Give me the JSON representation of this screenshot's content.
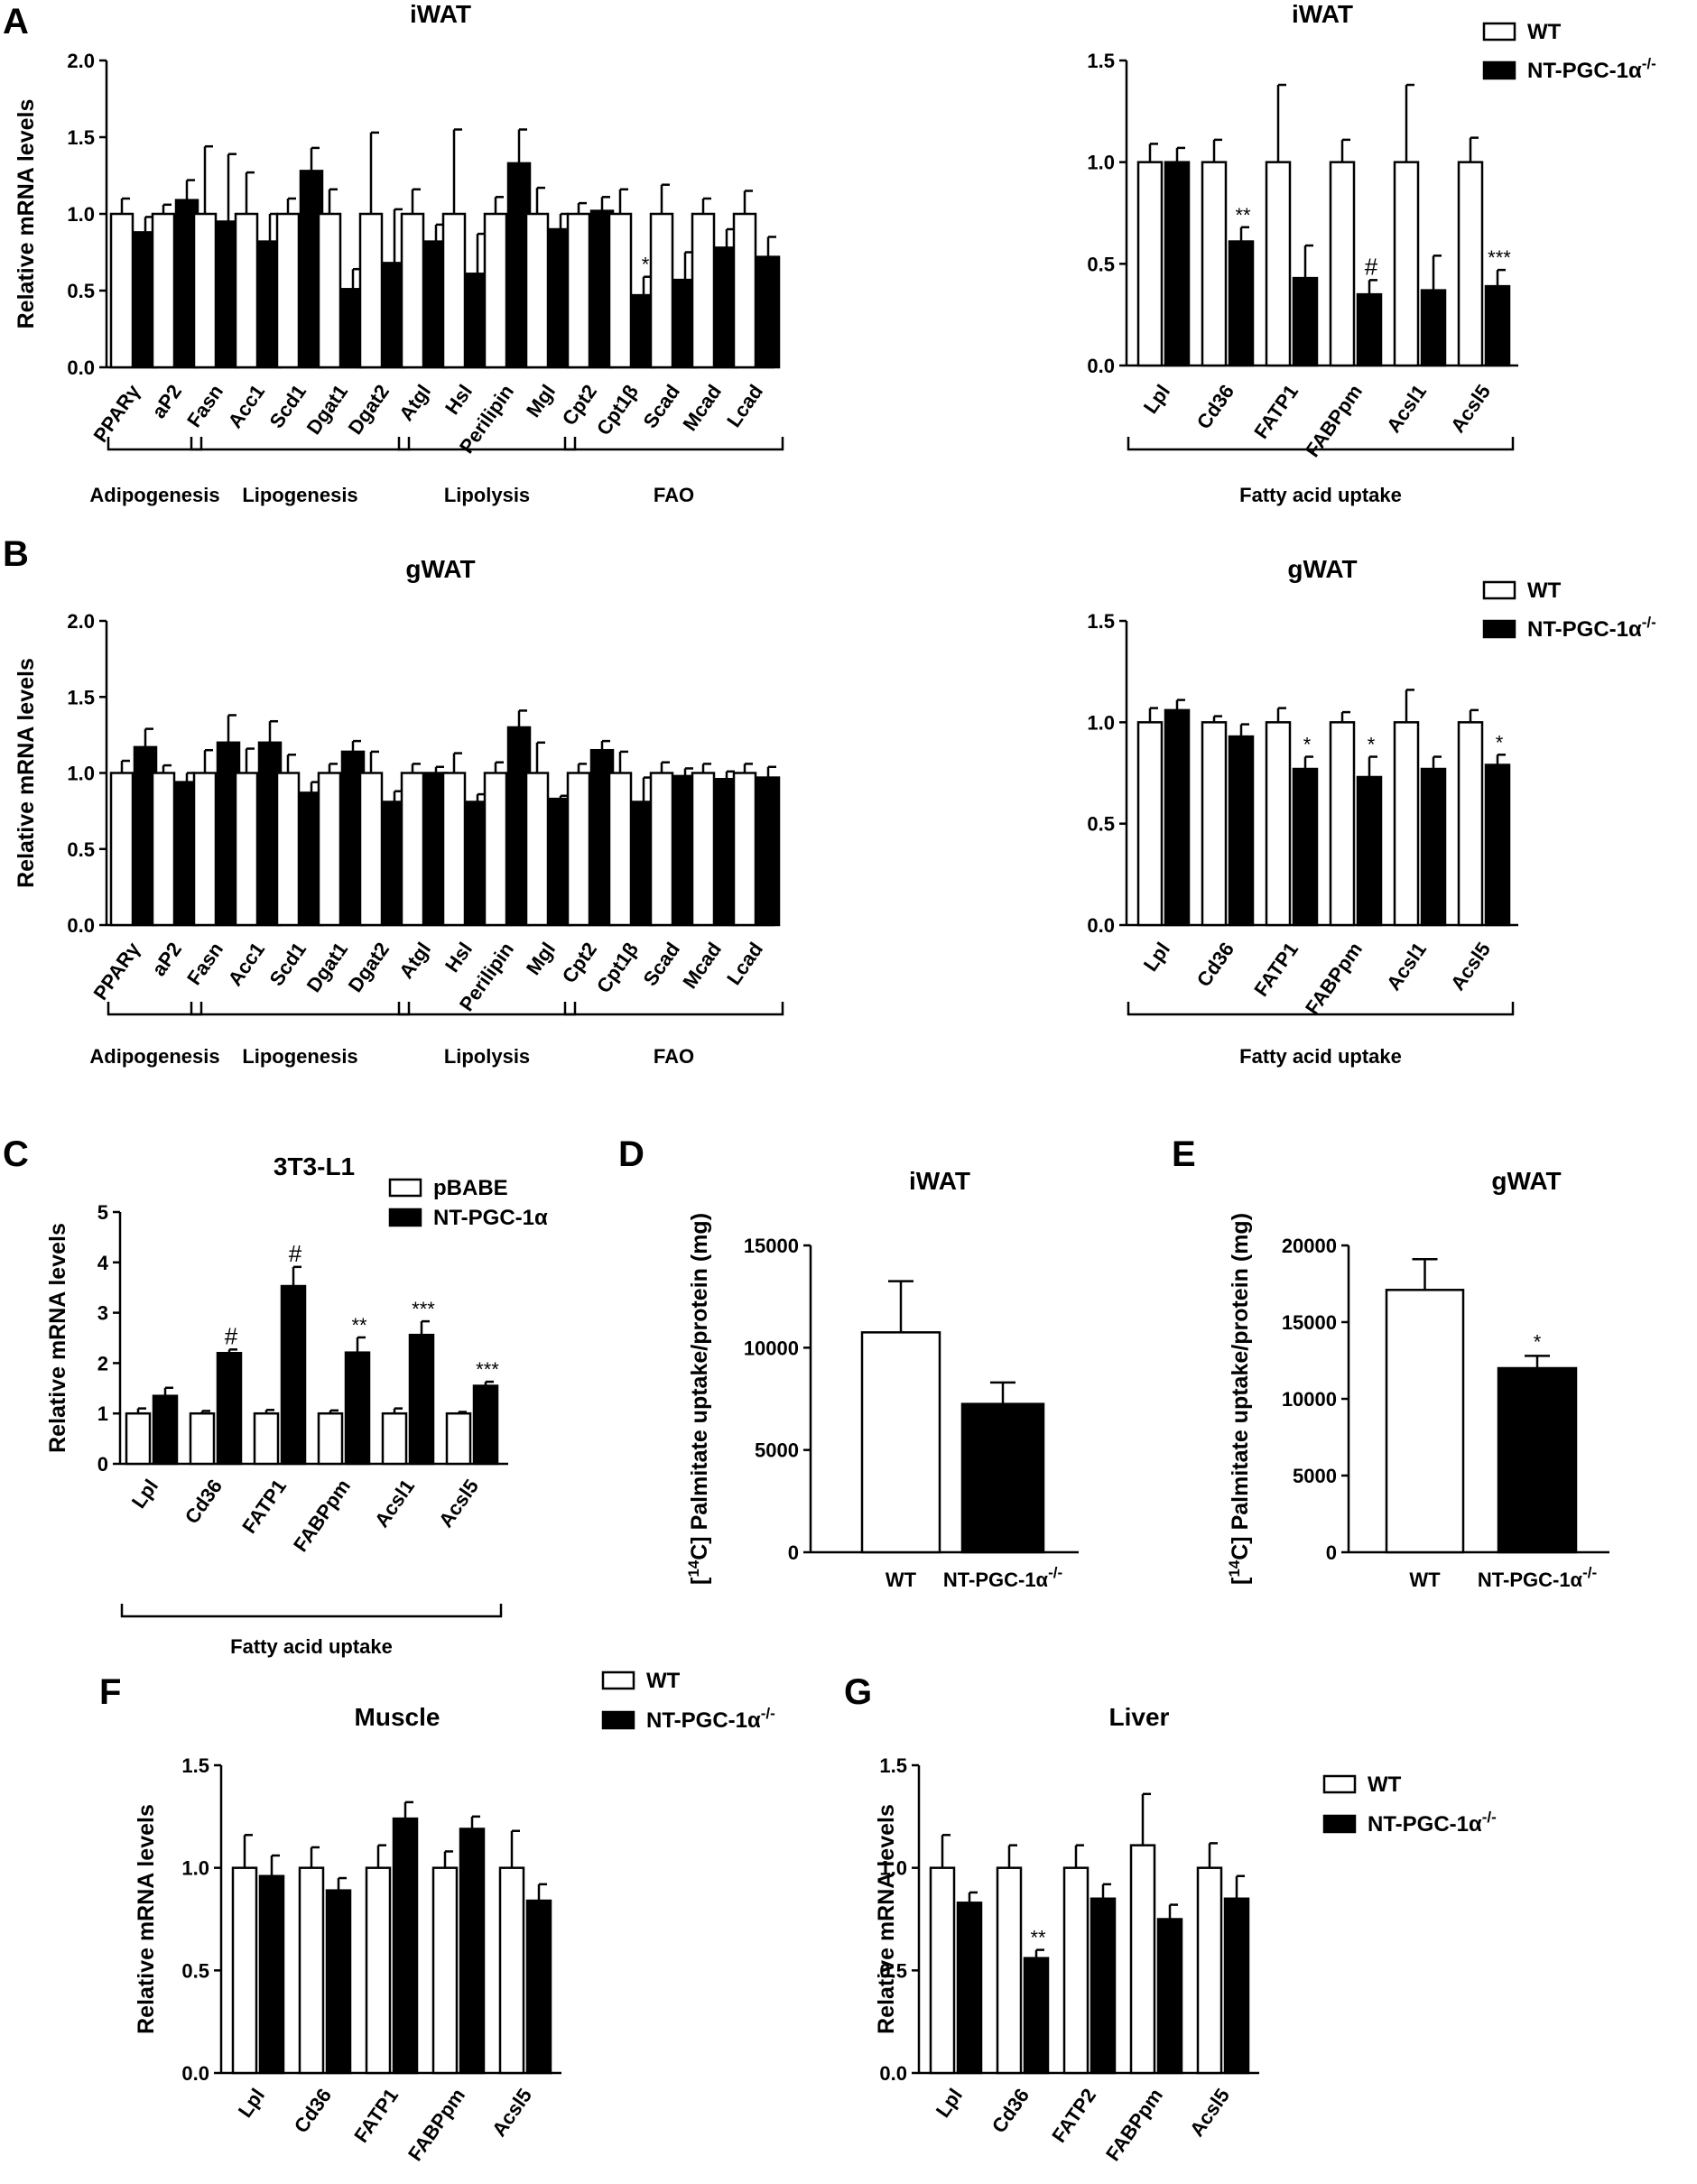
{
  "chart_data": [
    {
      "id": "A-left",
      "panel_label": "A",
      "type": "bar",
      "title": "iWAT",
      "ylabel": "Relative mRNA levels",
      "ylim": [
        0,
        2.0
      ],
      "yticks": [
        0.0,
        0.5,
        1.0,
        1.5,
        2.0
      ],
      "ytick_decimals": 1,
      "categories": [
        "PPARγ",
        "aP2",
        "Fasn",
        "Acc1",
        "Scd1",
        "Dgat1",
        "Dgat2",
        "Atgl",
        "Hsl",
        "Perilipin",
        "Mgl",
        "Cpt2",
        "Cpt1β",
        "Scad",
        "Mcad",
        "Lcad"
      ],
      "series": [
        {
          "name": "WT",
          "values": [
            1.0,
            1.0,
            1.0,
            1.0,
            1.0,
            1.0,
            1.0,
            1.0,
            1.0,
            1.0,
            1.0,
            1.0,
            1.0,
            1.0,
            1.0,
            1.0
          ],
          "errors": [
            0.1,
            0.06,
            0.44,
            0.27,
            0.1,
            0.16,
            0.53,
            0.16,
            0.55,
            0.11,
            0.17,
            0.07,
            0.16,
            0.19,
            0.1,
            0.15
          ]
        },
        {
          "name": "NT-PGC-1α-/-",
          "values": [
            0.88,
            1.09,
            0.95,
            0.82,
            1.28,
            0.51,
            0.68,
            0.82,
            0.61,
            1.33,
            0.9,
            1.02,
            0.47,
            0.57,
            0.78,
            0.72
          ],
          "errors": [
            0.1,
            0.13,
            0.44,
            0.18,
            0.15,
            0.13,
            0.35,
            0.11,
            0.26,
            0.22,
            0.1,
            0.09,
            0.12,
            0.18,
            0.12,
            0.13
          ]
        }
      ],
      "annotations": [
        {
          "category": 12,
          "text": "*"
        }
      ],
      "groups": [
        {
          "label": "Adipogenesis",
          "start": 0,
          "end": 1
        },
        {
          "label": "Lipogenesis",
          "start": 2,
          "end": 6
        },
        {
          "label": "Lipolysis",
          "start": 7,
          "end": 10
        },
        {
          "label": "FAO",
          "start": 11,
          "end": 15
        }
      ]
    },
    {
      "id": "A-right",
      "type": "bar",
      "title": "iWAT",
      "ylabel": "",
      "ylim": [
        0,
        1.5
      ],
      "yticks": [
        0.0,
        0.5,
        1.0,
        1.5
      ],
      "ytick_decimals": 1,
      "categories": [
        "Lpl",
        "Cd36",
        "FATP1",
        "FABPpm",
        "Acsl1",
        "Acsl5"
      ],
      "series": [
        {
          "name": "WT",
          "values": [
            1.0,
            1.0,
            1.0,
            1.0,
            1.0,
            1.0
          ],
          "errors": [
            0.09,
            0.11,
            0.38,
            0.11,
            0.38,
            0.12
          ]
        },
        {
          "name": "NT-PGC-1α-/-",
          "values": [
            1.0,
            0.61,
            0.43,
            0.35,
            0.37,
            0.39
          ],
          "errors": [
            0.07,
            0.07,
            0.16,
            0.07,
            0.17,
            0.08
          ]
        }
      ],
      "annotations": [
        {
          "category": 1,
          "text": "**"
        },
        {
          "category": 3,
          "text": "#"
        },
        {
          "category": 5,
          "text": "***"
        }
      ],
      "groups": [
        {
          "label": "Fatty acid uptake",
          "start": 0,
          "end": 5
        }
      ],
      "legend": [
        "WT",
        "NT-PGC-1α-/-"
      ]
    },
    {
      "id": "B-left",
      "panel_label": "B",
      "type": "bar",
      "title": "gWAT",
      "ylabel": "Relative mRNA levels",
      "ylim": [
        0,
        2.0
      ],
      "yticks": [
        0.0,
        0.5,
        1.0,
        1.5,
        2.0
      ],
      "ytick_decimals": 1,
      "categories": [
        "PPARγ",
        "aP2",
        "Fasn",
        "Acc1",
        "Scd1",
        "Dgat1",
        "Dgat2",
        "Atgl",
        "Hsl",
        "Perilipin",
        "Mgl",
        "Cpt2",
        "Cpt1β",
        "Scad",
        "Mcad",
        "Lcad"
      ],
      "series": [
        {
          "name": "WT",
          "values": [
            1.0,
            1.0,
            1.0,
            1.0,
            1.0,
            1.0,
            1.0,
            1.0,
            1.0,
            1.0,
            1.0,
            1.0,
            1.0,
            1.0,
            1.0,
            1.0
          ],
          "errors": [
            0.08,
            0.05,
            0.15,
            0.16,
            0.12,
            0.06,
            0.14,
            0.06,
            0.13,
            0.07,
            0.2,
            0.06,
            0.14,
            0.07,
            0.06,
            0.06
          ]
        },
        {
          "name": "NT-PGC-1α-/-",
          "values": [
            1.17,
            0.94,
            1.2,
            1.2,
            0.87,
            1.14,
            0.81,
            1.0,
            0.81,
            1.3,
            0.83,
            1.15,
            0.81,
            0.98,
            0.96,
            0.97
          ],
          "errors": [
            0.12,
            0.06,
            0.18,
            0.14,
            0.07,
            0.07,
            0.07,
            0.04,
            0.05,
            0.11,
            0.02,
            0.06,
            0.16,
            0.05,
            0.05,
            0.07
          ]
        }
      ],
      "annotations": [],
      "groups": [
        {
          "label": "Adipogenesis",
          "start": 0,
          "end": 1
        },
        {
          "label": "Lipogenesis",
          "start": 2,
          "end": 6
        },
        {
          "label": "Lipolysis",
          "start": 7,
          "end": 10
        },
        {
          "label": "FAO",
          "start": 11,
          "end": 15
        }
      ]
    },
    {
      "id": "B-right",
      "type": "bar",
      "title": "gWAT",
      "ylabel": "",
      "ylim": [
        0,
        1.5
      ],
      "yticks": [
        0.0,
        0.5,
        1.0,
        1.5
      ],
      "ytick_decimals": 1,
      "categories": [
        "Lpl",
        "Cd36",
        "FATP1",
        "FABPpm",
        "Acsl1",
        "Acsl5"
      ],
      "series": [
        {
          "name": "WT",
          "values": [
            1.0,
            1.0,
            1.0,
            1.0,
            1.0,
            1.0
          ],
          "errors": [
            0.07,
            0.03,
            0.07,
            0.05,
            0.16,
            0.06
          ]
        },
        {
          "name": "NT-PGC-1α-/-",
          "values": [
            1.06,
            0.93,
            0.77,
            0.73,
            0.77,
            0.79
          ],
          "errors": [
            0.05,
            0.06,
            0.06,
            0.1,
            0.06,
            0.05
          ]
        }
      ],
      "annotations": [
        {
          "category": 2,
          "text": "*"
        },
        {
          "category": 3,
          "text": "*"
        },
        {
          "category": 5,
          "text": "*"
        }
      ],
      "groups": [
        {
          "label": "Fatty acid uptake",
          "start": 0,
          "end": 5
        }
      ],
      "legend": [
        "WT",
        "NT-PGC-1α-/-"
      ]
    },
    {
      "id": "C",
      "panel_label": "C",
      "type": "bar",
      "title": "3T3-L1",
      "ylabel": "Relative mRNA levels",
      "ylim": [
        0,
        5
      ],
      "yticks": [
        0,
        1,
        2,
        3,
        4,
        5
      ],
      "ytick_decimals": 0,
      "categories": [
        "Lpl",
        "Cd36",
        "FATP1",
        "FABPpm",
        "Acsl1",
        "Acsl5"
      ],
      "series": [
        {
          "name": "pBABE",
          "values": [
            1.0,
            1.0,
            1.0,
            1.0,
            1.0,
            1.0
          ],
          "errors": [
            0.1,
            0.05,
            0.07,
            0.06,
            0.1,
            0.03
          ]
        },
        {
          "name": "NT-PGC-1α",
          "values": [
            1.35,
            2.2,
            3.53,
            2.21,
            2.56,
            1.55
          ],
          "errors": [
            0.16,
            0.07,
            0.38,
            0.3,
            0.27,
            0.08
          ]
        }
      ],
      "annotations": [
        {
          "category": 1,
          "text": "#"
        },
        {
          "category": 2,
          "text": "#"
        },
        {
          "category": 3,
          "text": "**"
        },
        {
          "category": 4,
          "text": "***"
        },
        {
          "category": 5,
          "text": "***"
        }
      ],
      "groups": [
        {
          "label": "Fatty acid uptake",
          "start": 0,
          "end": 5
        }
      ],
      "legend": [
        "pBABE",
        "NT-PGC-1α"
      ]
    },
    {
      "id": "D",
      "panel_label": "D",
      "type": "bar",
      "title": "iWAT",
      "ylabel": "[14C] Palmitate uptake/protein (mg)",
      "ylim": [
        0,
        15000
      ],
      "yticks": [
        0,
        5000,
        10000,
        15000
      ],
      "ytick_decimals": 0,
      "categories": [
        "WT",
        "NT-PGC-1α-/-"
      ],
      "values": [
        10750,
        7250
      ],
      "errors": [
        2500,
        1050
      ],
      "annotations": []
    },
    {
      "id": "E",
      "panel_label": "E",
      "type": "bar",
      "title": "gWAT",
      "ylabel": "[14C] Palmitate uptake/protein (mg)",
      "ylim": [
        0,
        20000
      ],
      "yticks": [
        0,
        5000,
        10000,
        15000,
        20000
      ],
      "ytick_decimals": 0,
      "categories": [
        "WT",
        "NT-PGC-1α-/-"
      ],
      "values": [
        17100,
        12000
      ],
      "errors": [
        2000,
        800
      ],
      "annotations": [
        {
          "category": 1,
          "text": "*"
        }
      ]
    },
    {
      "id": "F",
      "panel_label": "F",
      "type": "bar",
      "title": "Muscle",
      "ylabel": "Relative mRNA levels",
      "ylim": [
        0,
        1.5
      ],
      "yticks": [
        0.0,
        0.5,
        1.0,
        1.5
      ],
      "ytick_decimals": 1,
      "categories": [
        "Lpl",
        "Cd36",
        "FATP1",
        "FABPpm",
        "Acsl5"
      ],
      "series": [
        {
          "name": "WT",
          "values": [
            1.0,
            1.0,
            1.0,
            1.0,
            1.0
          ],
          "errors": [
            0.16,
            0.1,
            0.11,
            0.08,
            0.18
          ]
        },
        {
          "name": "NT-PGC-1α-/-",
          "values": [
            0.96,
            0.89,
            1.24,
            1.19,
            0.84
          ],
          "errors": [
            0.1,
            0.06,
            0.08,
            0.06,
            0.08
          ]
        }
      ],
      "annotations": [],
      "legend": [
        "WT",
        "NT-PGC-1α-/-"
      ]
    },
    {
      "id": "G",
      "panel_label": "G",
      "type": "bar",
      "title": "Liver",
      "ylabel": "Relative mRNA levels",
      "ylim": [
        0,
        1.5
      ],
      "yticks": [
        0.0,
        0.5,
        1.0,
        1.5
      ],
      "ytick_decimals": 1,
      "categories": [
        "Lpl",
        "Cd36",
        "FATP2",
        "FABPpm",
        "Acsl5"
      ],
      "series": [
        {
          "name": "WT",
          "values": [
            1.0,
            1.0,
            1.0,
            1.11,
            1.0
          ],
          "errors": [
            0.16,
            0.11,
            0.11,
            0.25,
            0.12
          ]
        },
        {
          "name": "NT-PGC-1α-/-",
          "values": [
            0.83,
            0.56,
            0.85,
            0.75,
            0.85
          ],
          "errors": [
            0.05,
            0.04,
            0.07,
            0.07,
            0.11
          ]
        }
      ],
      "annotations": [
        {
          "category": 1,
          "text": "**"
        }
      ],
      "legend": [
        "WT",
        "NT-PGC-1α-/-"
      ]
    }
  ]
}
